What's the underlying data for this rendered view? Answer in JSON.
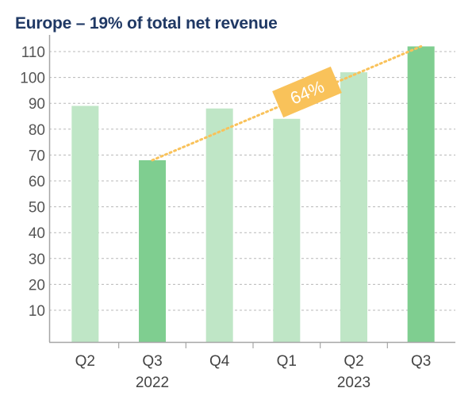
{
  "chart_data": {
    "type": "bar",
    "title": "Europe – 19% of total net revenue",
    "categories": [
      "Q2",
      "Q3",
      "Q4",
      "Q1",
      "Q2",
      "Q3"
    ],
    "year_labels": [
      "",
      "2022",
      "",
      "",
      "2023",
      ""
    ],
    "values": [
      89,
      68,
      88,
      84,
      102,
      112
    ],
    "highlighted": [
      false,
      true,
      false,
      false,
      false,
      true
    ],
    "yticks": [
      10,
      20,
      30,
      40,
      50,
      60,
      70,
      80,
      90,
      100,
      110
    ],
    "ylim": [
      0,
      112
    ],
    "xlabel": "",
    "ylabel": "",
    "grid": true,
    "trend": {
      "from_index": 1,
      "to_index": 5,
      "label": "64%"
    },
    "colors": {
      "bar_light": "#bfe6c6",
      "bar_dark": "#7fce90",
      "trend": "#f9c25a",
      "badge": "#f9c25a",
      "axis": "#a6a6a6",
      "grid": "#b8b8b8",
      "title": "#1f3864"
    }
  }
}
